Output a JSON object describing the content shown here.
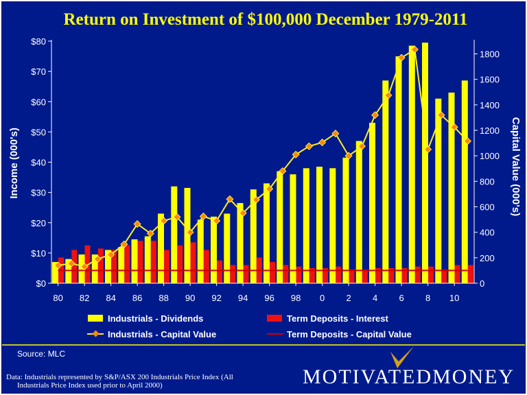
{
  "chart_data": {
    "type": "bar",
    "title": "Return on Investment of  $100,000 December 1979-2011",
    "x_tick_labels": [
      "80",
      "82",
      "84",
      "86",
      "88",
      "90",
      "92",
      "94",
      "96",
      "98",
      "0",
      "2",
      "4",
      "6",
      "8",
      "10"
    ],
    "years": [
      1980,
      1981,
      1982,
      1983,
      1984,
      1985,
      1986,
      1987,
      1988,
      1989,
      1990,
      1991,
      1992,
      1993,
      1994,
      1995,
      1996,
      1997,
      1998,
      1999,
      2000,
      2001,
      2002,
      2003,
      2004,
      2005,
      2006,
      2007,
      2008,
      2009,
      2010,
      2011
    ],
    "left_axis": {
      "label": "Income (000's)",
      "min": 0,
      "max": 80,
      "ticks": [
        "$0",
        "$10",
        "$20",
        "$30",
        "$40",
        "$50",
        "$60",
        "$70",
        "$80"
      ]
    },
    "right_axis": {
      "label": "Capital Value (000's)",
      "min": 0,
      "max": 1900,
      "ticks": [
        "0",
        "200",
        "400",
        "600",
        "800",
        "1000",
        "1200",
        "1400",
        "1600",
        "1800"
      ]
    },
    "series": [
      {
        "name": "Industrials - Dividends",
        "type": "bar",
        "axis": "left",
        "color": "#ffff00",
        "values": [
          7,
          8,
          9.5,
          9.5,
          11,
          12,
          14.5,
          15.5,
          23,
          32,
          31.5,
          21,
          22,
          23,
          26.5,
          31,
          33,
          37,
          36,
          38,
          38.5,
          38,
          41.5,
          47,
          53,
          67,
          75,
          78.5,
          79.5,
          61,
          63,
          67
        ]
      },
      {
        "name": "Term Deposits - Interest",
        "type": "bar",
        "axis": "left",
        "color": "#ee1111",
        "values": [
          8.5,
          11,
          12.5,
          11.5,
          11,
          12.5,
          14,
          14,
          11,
          12.5,
          13.5,
          11,
          7.5,
          6,
          6,
          8.5,
          7,
          6,
          5.5,
          5,
          5,
          5.5,
          4.5,
          4.5,
          5,
          5,
          5,
          5.5,
          5.5,
          4.5,
          6,
          6
        ]
      },
      {
        "name": "Industrials - Capital Value",
        "type": "line",
        "axis": "right",
        "color": "#ffee22",
        "marker_color": "#ff8800",
        "values": [
          140,
          155,
          130,
          190,
          225,
          305,
          465,
          390,
          490,
          520,
          400,
          525,
          490,
          660,
          550,
          655,
          740,
          880,
          1010,
          1075,
          1105,
          1175,
          1000,
          1075,
          1320,
          1475,
          1770,
          1835,
          1050,
          1320,
          1225,
          1115
        ]
      },
      {
        "name": "Term Deposits - Capital Value",
        "type": "line",
        "axis": "right",
        "color": "#cc0000",
        "values": [
          100,
          100,
          100,
          100,
          100,
          100,
          100,
          100,
          100,
          100,
          100,
          100,
          100,
          100,
          100,
          100,
          100,
          100,
          100,
          100,
          100,
          100,
          100,
          100,
          100,
          100,
          100,
          100,
          100,
          100,
          100,
          100
        ]
      }
    ],
    "legend": [
      "Industrials - Dividends",
      "Term Deposits - Interest",
      "Industrials - Capital Value",
      "Term Deposits - Capital Value"
    ]
  },
  "footer": {
    "source": "Source: MLC",
    "note_line1": "Data: Industrials represented by S&P/ASX 200 Industrials Price Index (All",
    "note_line2": "Industrials Price Index used prior to April 2000)",
    "logo_text": "MOTIVATEDMONEY"
  },
  "colors": {
    "background": "#001a8c",
    "accent": "#ffff00",
    "text": "#ffffff"
  }
}
